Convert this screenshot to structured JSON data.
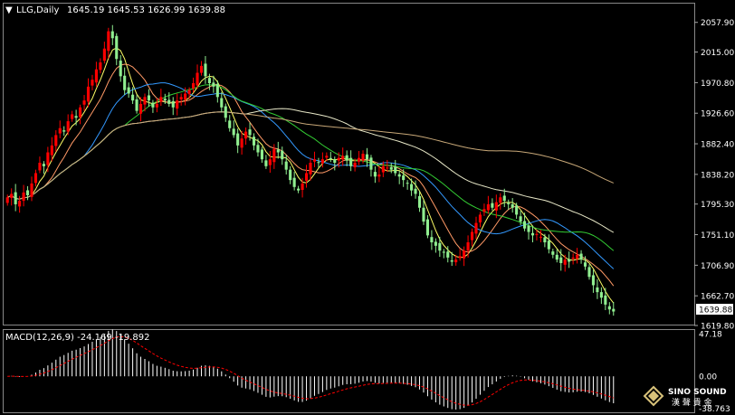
{
  "header": {
    "symbol": "LLG,Daily",
    "ohlc": "1645.19 1645.53 1626.99 1639.88"
  },
  "price_axis": {
    "ticks": [
      "2057.90",
      "2015.00",
      "1970.80",
      "1926.60",
      "1882.40",
      "1838.20",
      "1795.30",
      "1751.10",
      "1706.90",
      "1662.70",
      "1619.80"
    ],
    "current_price": "1639.88"
  },
  "macd_panel": {
    "label": "MACD(12,26,9) -24.169 -19.892",
    "ticks": [
      "47.18",
      "0.00",
      "-38.763"
    ]
  },
  "watermark": {
    "line1": "SINO SOUND",
    "line2": "漢 聲 貴 金"
  },
  "colors": {
    "background": "#000000",
    "bull_candle": "#ff0000",
    "bear_candle": "#90ee90",
    "ma5": "#ffff66",
    "ma10": "#ff9966",
    "ma20": "#3399ff",
    "ma30": "#33cc33",
    "ma60": "#e8e8c8",
    "ma120": "#c8a878",
    "macd_hist": "#ffffff",
    "macd_signal": "#ff0000"
  },
  "chart_data": {
    "type": "candlestick",
    "timeframe": "Daily",
    "ylim": [
      1619.8,
      2085
    ],
    "current_price": 1639.88,
    "closes": [
      1805,
      1810,
      1795,
      1800,
      1812,
      1808,
      1825,
      1840,
      1855,
      1850,
      1870,
      1880,
      1895,
      1905,
      1900,
      1915,
      1925,
      1920,
      1935,
      1945,
      1965,
      1975,
      1990,
      2000,
      2020,
      2045,
      2035,
      2005,
      1980,
      1960,
      1955,
      1945,
      1930,
      1940,
      1950,
      1945,
      1935,
      1940,
      1950,
      1945,
      1940,
      1935,
      1945,
      1950,
      1955,
      1960,
      1970,
      1985,
      1995,
      1980,
      1970,
      1965,
      1950,
      1935,
      1920,
      1905,
      1895,
      1880,
      1890,
      1900,
      1895,
      1880,
      1870,
      1860,
      1850,
      1860,
      1875,
      1870,
      1860,
      1845,
      1830,
      1820,
      1815,
      1825,
      1840,
      1855,
      1860,
      1855,
      1860,
      1865,
      1860,
      1855,
      1862,
      1865,
      1858,
      1850,
      1855,
      1862,
      1868,
      1860,
      1845,
      1835,
      1838,
      1850,
      1848,
      1845,
      1840,
      1835,
      1830,
      1825,
      1815,
      1810,
      1790,
      1770,
      1750,
      1740,
      1735,
      1728,
      1725,
      1718,
      1712,
      1715,
      1720,
      1728,
      1740,
      1755,
      1768,
      1780,
      1788,
      1795,
      1790,
      1798,
      1805,
      1800,
      1795,
      1790,
      1780,
      1770,
      1760,
      1755,
      1750,
      1752,
      1748,
      1740,
      1730,
      1722,
      1715,
      1710,
      1715,
      1712,
      1718,
      1722,
      1715,
      1705,
      1690,
      1678,
      1668,
      1660,
      1650,
      1643,
      1640
    ],
    "moving_averages": [
      "MA5",
      "MA10",
      "MA20",
      "MA30",
      "MA60",
      "MA120"
    ],
    "macd": {
      "params": "12,26,9",
      "macd_value": -24.169,
      "signal_value": -19.892,
      "ylim": [
        -38.763,
        47.18
      ]
    }
  }
}
